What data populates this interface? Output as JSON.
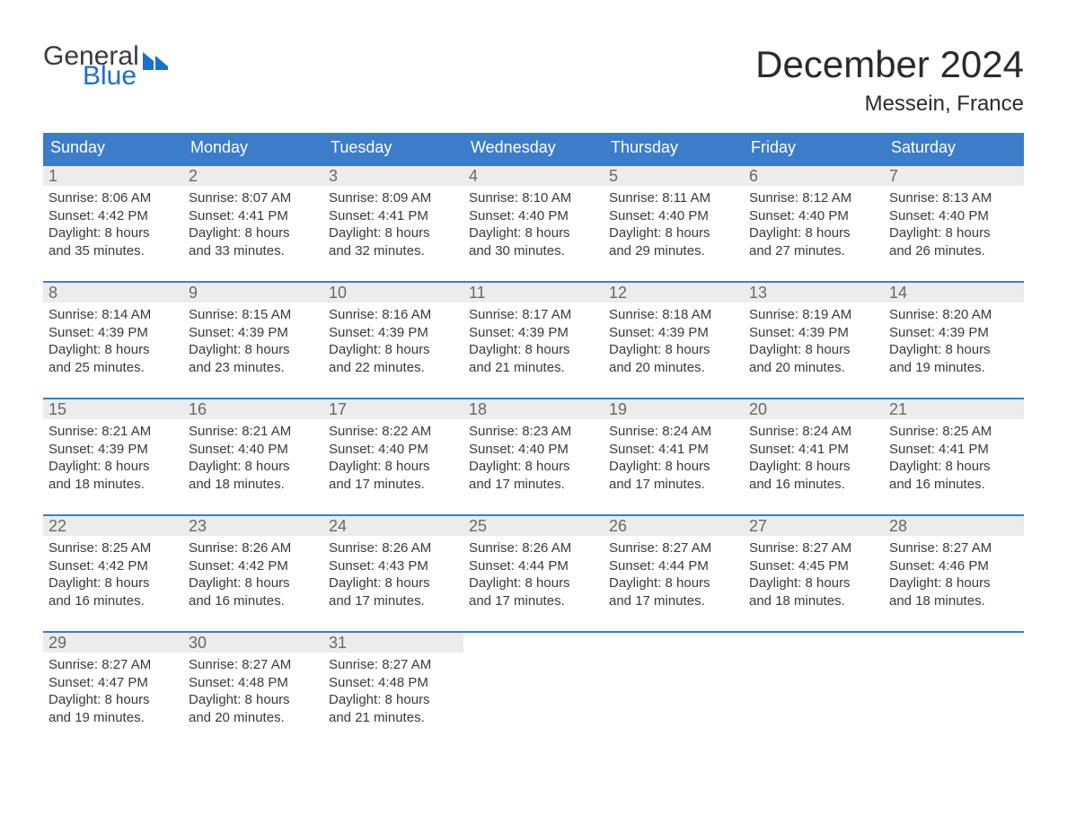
{
  "logo": {
    "word1": "General",
    "word2": "Blue"
  },
  "title": "December 2024",
  "location": "Messein, France",
  "colors": {
    "header_blue": "#3d7cc9",
    "accent_blue": "#1f6fc8",
    "row_grey": "#ececec",
    "text_dark": "#3a3a3a",
    "text_grey": "#686868",
    "background": "#ffffff"
  },
  "typography": {
    "title_fontsize_pt": 32,
    "location_fontsize_pt": 18,
    "dow_fontsize_pt": 14,
    "body_fontsize_pt": 11,
    "font_family": "Arial"
  },
  "dow": [
    "Sunday",
    "Monday",
    "Tuesday",
    "Wednesday",
    "Thursday",
    "Friday",
    "Saturday"
  ],
  "weeks": [
    [
      {
        "n": "1",
        "sunrise": "8:06 AM",
        "sunset": "4:42 PM",
        "dl1": "Daylight: 8 hours",
        "dl2": "and 35 minutes."
      },
      {
        "n": "2",
        "sunrise": "8:07 AM",
        "sunset": "4:41 PM",
        "dl1": "Daylight: 8 hours",
        "dl2": "and 33 minutes."
      },
      {
        "n": "3",
        "sunrise": "8:09 AM",
        "sunset": "4:41 PM",
        "dl1": "Daylight: 8 hours",
        "dl2": "and 32 minutes."
      },
      {
        "n": "4",
        "sunrise": "8:10 AM",
        "sunset": "4:40 PM",
        "dl1": "Daylight: 8 hours",
        "dl2": "and 30 minutes."
      },
      {
        "n": "5",
        "sunrise": "8:11 AM",
        "sunset": "4:40 PM",
        "dl1": "Daylight: 8 hours",
        "dl2": "and 29 minutes."
      },
      {
        "n": "6",
        "sunrise": "8:12 AM",
        "sunset": "4:40 PM",
        "dl1": "Daylight: 8 hours",
        "dl2": "and 27 minutes."
      },
      {
        "n": "7",
        "sunrise": "8:13 AM",
        "sunset": "4:40 PM",
        "dl1": "Daylight: 8 hours",
        "dl2": "and 26 minutes."
      }
    ],
    [
      {
        "n": "8",
        "sunrise": "8:14 AM",
        "sunset": "4:39 PM",
        "dl1": "Daylight: 8 hours",
        "dl2": "and 25 minutes."
      },
      {
        "n": "9",
        "sunrise": "8:15 AM",
        "sunset": "4:39 PM",
        "dl1": "Daylight: 8 hours",
        "dl2": "and 23 minutes."
      },
      {
        "n": "10",
        "sunrise": "8:16 AM",
        "sunset": "4:39 PM",
        "dl1": "Daylight: 8 hours",
        "dl2": "and 22 minutes."
      },
      {
        "n": "11",
        "sunrise": "8:17 AM",
        "sunset": "4:39 PM",
        "dl1": "Daylight: 8 hours",
        "dl2": "and 21 minutes."
      },
      {
        "n": "12",
        "sunrise": "8:18 AM",
        "sunset": "4:39 PM",
        "dl1": "Daylight: 8 hours",
        "dl2": "and 20 minutes."
      },
      {
        "n": "13",
        "sunrise": "8:19 AM",
        "sunset": "4:39 PM",
        "dl1": "Daylight: 8 hours",
        "dl2": "and 20 minutes."
      },
      {
        "n": "14",
        "sunrise": "8:20 AM",
        "sunset": "4:39 PM",
        "dl1": "Daylight: 8 hours",
        "dl2": "and 19 minutes."
      }
    ],
    [
      {
        "n": "15",
        "sunrise": "8:21 AM",
        "sunset": "4:39 PM",
        "dl1": "Daylight: 8 hours",
        "dl2": "and 18 minutes."
      },
      {
        "n": "16",
        "sunrise": "8:21 AM",
        "sunset": "4:40 PM",
        "dl1": "Daylight: 8 hours",
        "dl2": "and 18 minutes."
      },
      {
        "n": "17",
        "sunrise": "8:22 AM",
        "sunset": "4:40 PM",
        "dl1": "Daylight: 8 hours",
        "dl2": "and 17 minutes."
      },
      {
        "n": "18",
        "sunrise": "8:23 AM",
        "sunset": "4:40 PM",
        "dl1": "Daylight: 8 hours",
        "dl2": "and 17 minutes."
      },
      {
        "n": "19",
        "sunrise": "8:24 AM",
        "sunset": "4:41 PM",
        "dl1": "Daylight: 8 hours",
        "dl2": "and 17 minutes."
      },
      {
        "n": "20",
        "sunrise": "8:24 AM",
        "sunset": "4:41 PM",
        "dl1": "Daylight: 8 hours",
        "dl2": "and 16 minutes."
      },
      {
        "n": "21",
        "sunrise": "8:25 AM",
        "sunset": "4:41 PM",
        "dl1": "Daylight: 8 hours",
        "dl2": "and 16 minutes."
      }
    ],
    [
      {
        "n": "22",
        "sunrise": "8:25 AM",
        "sunset": "4:42 PM",
        "dl1": "Daylight: 8 hours",
        "dl2": "and 16 minutes."
      },
      {
        "n": "23",
        "sunrise": "8:26 AM",
        "sunset": "4:42 PM",
        "dl1": "Daylight: 8 hours",
        "dl2": "and 16 minutes."
      },
      {
        "n": "24",
        "sunrise": "8:26 AM",
        "sunset": "4:43 PM",
        "dl1": "Daylight: 8 hours",
        "dl2": "and 17 minutes."
      },
      {
        "n": "25",
        "sunrise": "8:26 AM",
        "sunset": "4:44 PM",
        "dl1": "Daylight: 8 hours",
        "dl2": "and 17 minutes."
      },
      {
        "n": "26",
        "sunrise": "8:27 AM",
        "sunset": "4:44 PM",
        "dl1": "Daylight: 8 hours",
        "dl2": "and 17 minutes."
      },
      {
        "n": "27",
        "sunrise": "8:27 AM",
        "sunset": "4:45 PM",
        "dl1": "Daylight: 8 hours",
        "dl2": "and 18 minutes."
      },
      {
        "n": "28",
        "sunrise": "8:27 AM",
        "sunset": "4:46 PM",
        "dl1": "Daylight: 8 hours",
        "dl2": "and 18 minutes."
      }
    ],
    [
      {
        "n": "29",
        "sunrise": "8:27 AM",
        "sunset": "4:47 PM",
        "dl1": "Daylight: 8 hours",
        "dl2": "and 19 minutes."
      },
      {
        "n": "30",
        "sunrise": "8:27 AM",
        "sunset": "4:48 PM",
        "dl1": "Daylight: 8 hours",
        "dl2": "and 20 minutes."
      },
      {
        "n": "31",
        "sunrise": "8:27 AM",
        "sunset": "4:48 PM",
        "dl1": "Daylight: 8 hours",
        "dl2": "and 21 minutes."
      },
      null,
      null,
      null,
      null
    ]
  ],
  "labels": {
    "sunrise": "Sunrise: ",
    "sunset": "Sunset: "
  }
}
